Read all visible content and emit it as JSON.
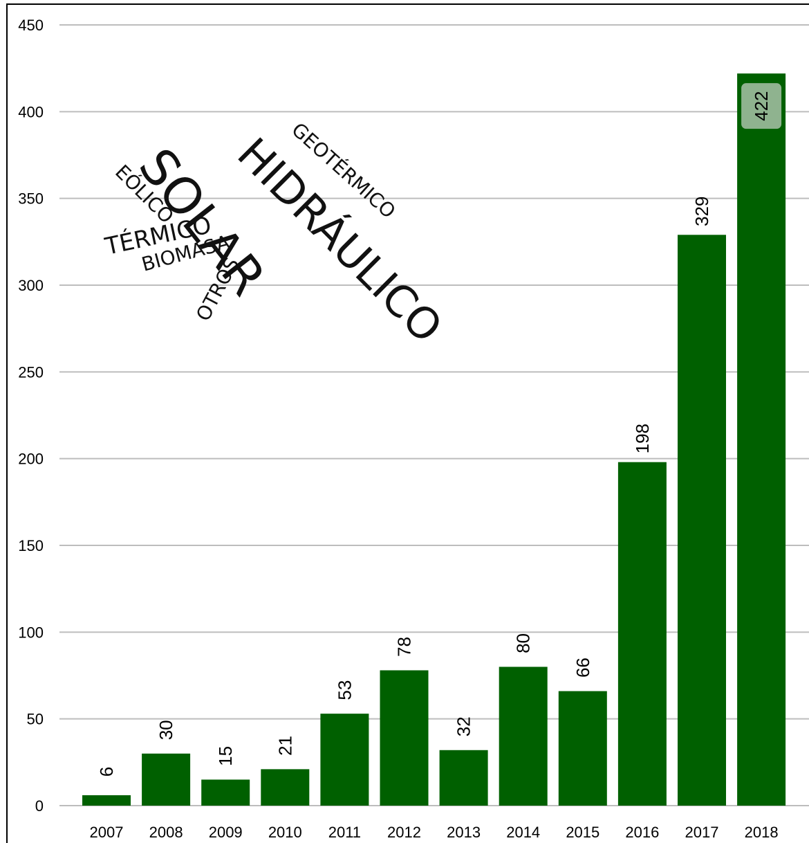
{
  "chart_data": {
    "type": "bar",
    "title": "",
    "xlabel": "",
    "ylabel": "",
    "categories": [
      "2007",
      "2008",
      "2009",
      "2010",
      "2011",
      "2012",
      "2013",
      "2014",
      "2015",
      "2016",
      "2017",
      "2018"
    ],
    "values": [
      6,
      30,
      15,
      21,
      53,
      78,
      32,
      80,
      66,
      198,
      329,
      422
    ],
    "ylim": [
      0,
      450
    ],
    "yticks": [
      0,
      50,
      100,
      150,
      200,
      250,
      300,
      350,
      400,
      450
    ],
    "grid": true,
    "legend": "none",
    "bar_color": "#006000",
    "highlight_label_bg": "#8fb38f",
    "annotations": {
      "word_cloud": [
        "SOLAR",
        "HIDRÁULICO",
        "GEOTÉRMICO",
        "EÓLICO",
        "TÉRMICO",
        "BIOMASA",
        "OTROS"
      ]
    }
  }
}
